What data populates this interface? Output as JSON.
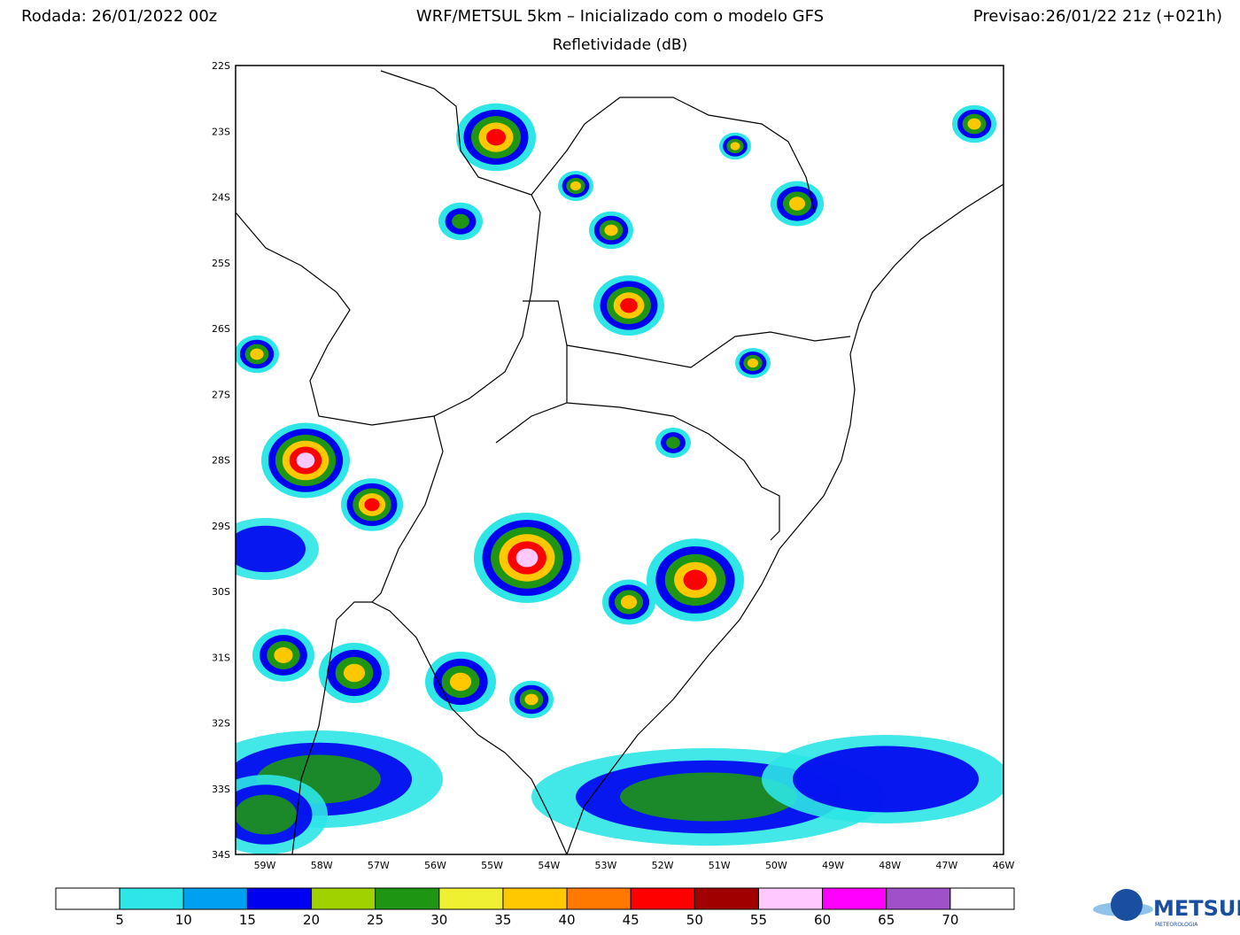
{
  "header": {
    "left": "Rodada: 26/01/2022 00z",
    "center": "WRF/METSUL 5km – Inicializado com o modelo GFS",
    "right": "Previsao:26/01/22 21z (+021h)",
    "subtitle": "Refletividade (dB)"
  },
  "map": {
    "lat_labels": [
      "22S",
      "23S",
      "24S",
      "25S",
      "26S",
      "27S",
      "28S",
      "29S",
      "30S",
      "31S",
      "32S",
      "33S",
      "34S"
    ],
    "lon_labels": [
      "59W",
      "58W",
      "57W",
      "56W",
      "55W",
      "54W",
      "53W",
      "52W",
      "51W",
      "50W",
      "49W",
      "48W",
      "47W",
      "46W"
    ]
  },
  "colorbar": {
    "colors": [
      "#ffffff",
      "#2ee6e6",
      "#00a0f0",
      "#0000f0",
      "#a0d200",
      "#1e9614",
      "#f0f032",
      "#ffc800",
      "#ff7800",
      "#ff0000",
      "#a00000",
      "#ffc8ff",
      "#ff00ff",
      "#a050c8",
      "#ffffff"
    ],
    "ticks": [
      5,
      10,
      15,
      20,
      25,
      30,
      35,
      40,
      45,
      50,
      55,
      60,
      65,
      70
    ]
  },
  "logo": {
    "name": "METSUL",
    "tagline": "METEOROLOGIA"
  }
}
